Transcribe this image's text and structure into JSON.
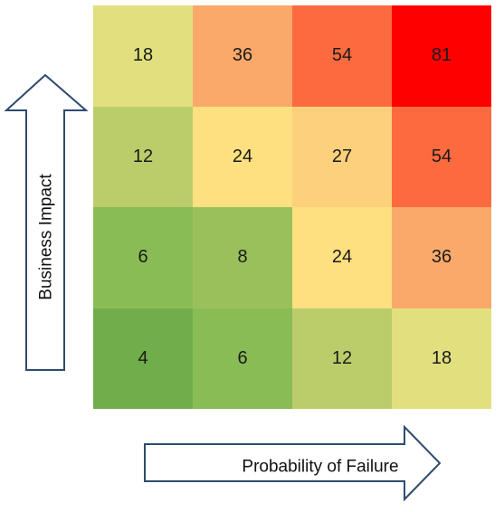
{
  "axes": {
    "y_label": "Business Impact",
    "x_label": "Probability of Failure"
  },
  "matrix": {
    "rows": [
      [
        {
          "value": "18",
          "color": "#e2df7f"
        },
        {
          "value": "36",
          "color": "#fba96a"
        },
        {
          "value": "54",
          "color": "#fc6b40"
        },
        {
          "value": "81",
          "color": "#fe0000"
        }
      ],
      [
        {
          "value": "12",
          "color": "#bbcc6b"
        },
        {
          "value": "24",
          "color": "#fde080"
        },
        {
          "value": "27",
          "color": "#fdd17c"
        },
        {
          "value": "54",
          "color": "#fc6b40"
        }
      ],
      [
        {
          "value": "6",
          "color": "#8abc55"
        },
        {
          "value": "8",
          "color": "#9ac05c"
        },
        {
          "value": "24",
          "color": "#fde080"
        },
        {
          "value": "36",
          "color": "#fba96a"
        }
      ],
      [
        {
          "value": "4",
          "color": "#70ae4b"
        },
        {
          "value": "6",
          "color": "#8abc55"
        },
        {
          "value": "12",
          "color": "#bbcc6b"
        },
        {
          "value": "18",
          "color": "#e2df7f"
        }
      ]
    ]
  }
}
